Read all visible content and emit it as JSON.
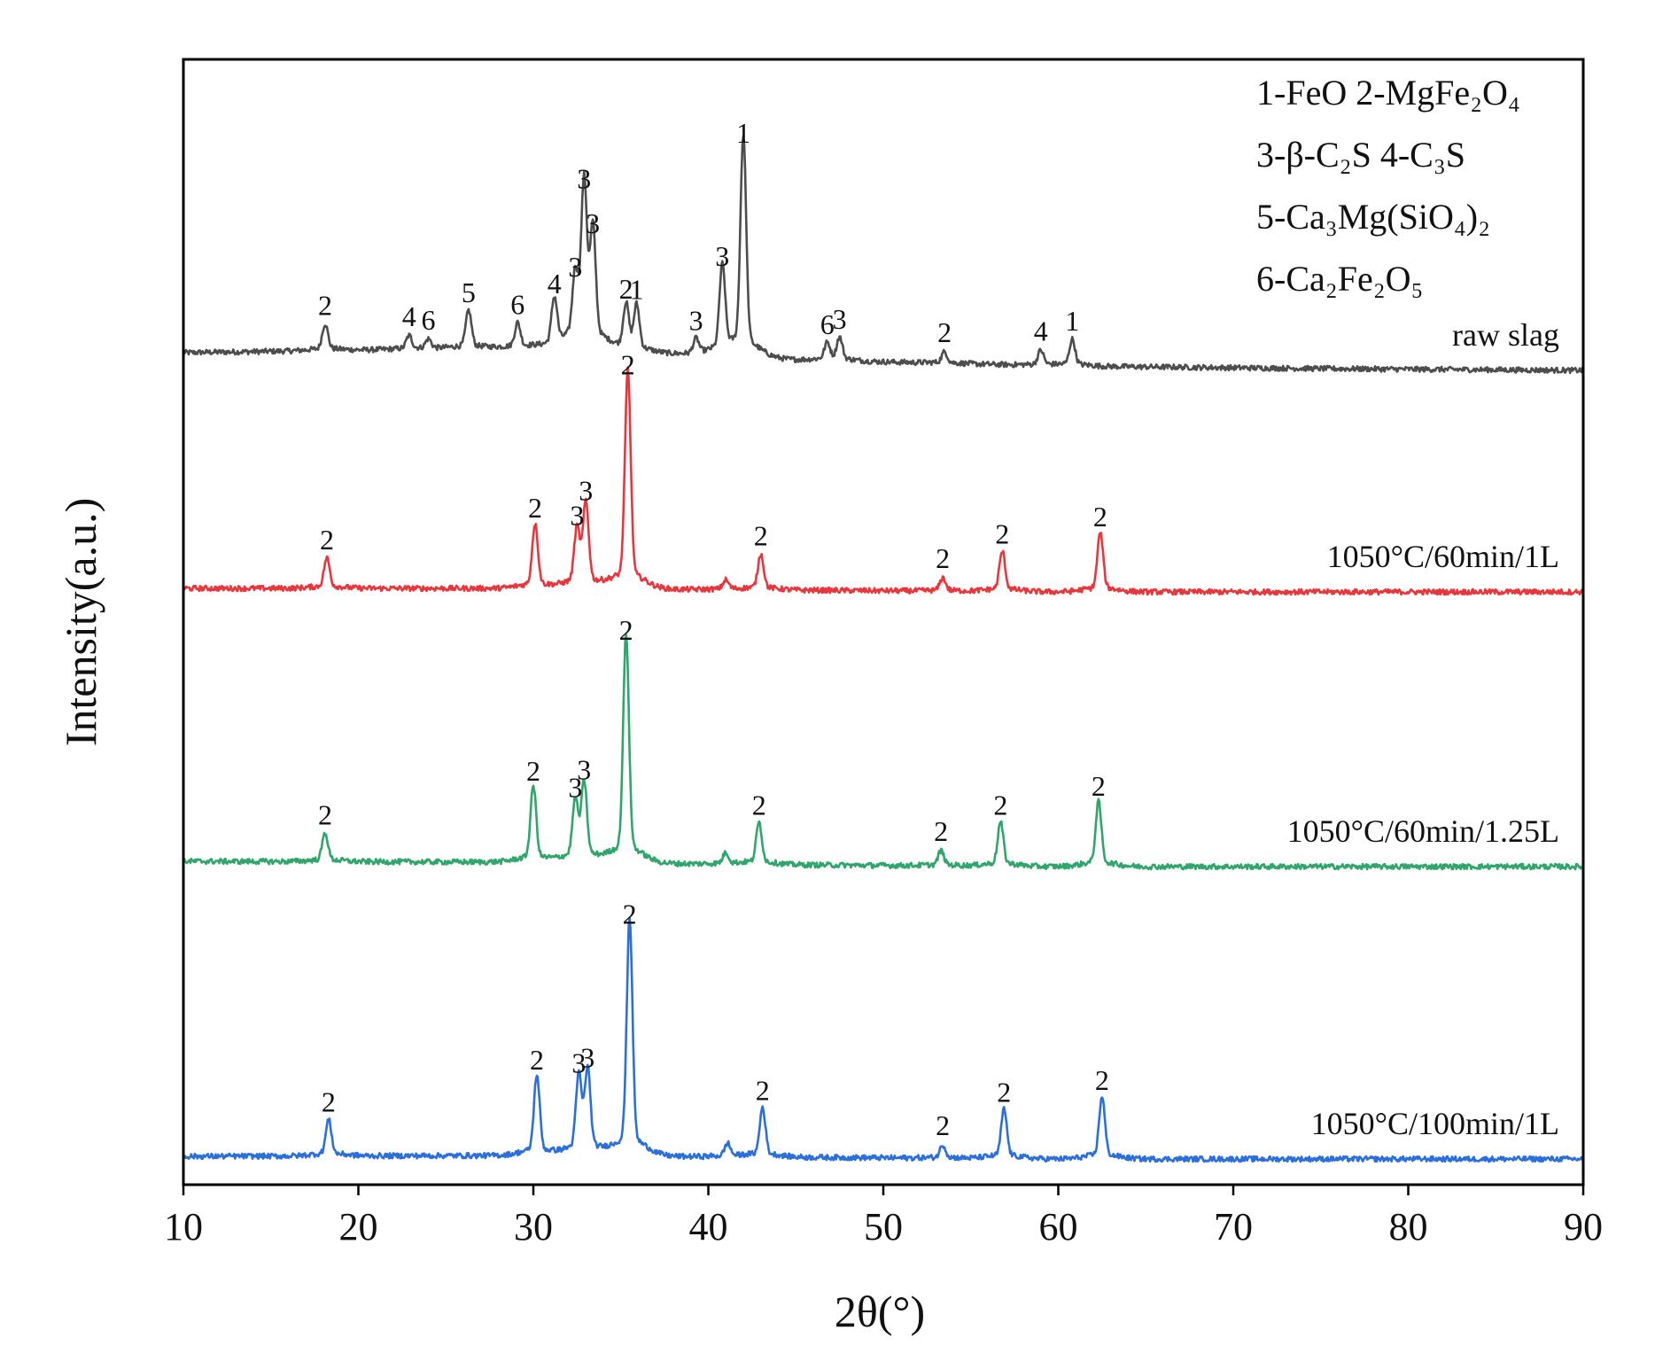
{
  "chart_data": {
    "type": "line",
    "xlabel": "2θ(°)",
    "ylabel": "Intensity(a.u.)",
    "xlim": [
      10,
      90
    ],
    "xticks": [
      "10",
      "20",
      "30",
      "40",
      "50",
      "60",
      "70",
      "80",
      "90"
    ],
    "grid": false,
    "legend": {
      "placement": "top-right",
      "lines": [
        "1-FeO  2-MgFe₂O₄",
        "3-β-C₂S 4-C₃S",
        "5-Ca₃Mg(SiO₄)₂",
        "6-Ca₂Fe₂O₅"
      ]
    },
    "series": [
      {
        "name": "raw slag",
        "color": "#4d4d4d",
        "baseline": [
          [
            10,
            20
          ],
          [
            30,
            26
          ],
          [
            45,
            12
          ],
          [
            60,
            5
          ],
          [
            75,
            2
          ],
          [
            90,
            0
          ]
        ],
        "peaks": [
          {
            "x": 18.1,
            "h": 28,
            "label": "2"
          },
          {
            "x": 22.9,
            "h": 14,
            "label": "4"
          },
          {
            "x": 24.0,
            "h": 10,
            "label": "6"
          },
          {
            "x": 26.3,
            "h": 40,
            "label": "5"
          },
          {
            "x": 29.1,
            "h": 26,
            "label": "6"
          },
          {
            "x": 31.2,
            "h": 50,
            "label": "4"
          },
          {
            "x": 32.4,
            "h": 70,
            "label": "3"
          },
          {
            "x": 32.9,
            "h": 170,
            "label": "3"
          },
          {
            "x": 33.4,
            "h": 120,
            "label": "3"
          },
          {
            "x": 35.3,
            "h": 48,
            "label": "2"
          },
          {
            "x": 35.9,
            "h": 48,
            "label": "1"
          },
          {
            "x": 39.3,
            "h": 16,
            "label": "3"
          },
          {
            "x": 40.8,
            "h": 90,
            "label": "3"
          },
          {
            "x": 42.0,
            "h": 230,
            "label": "1"
          },
          {
            "x": 46.8,
            "h": 18,
            "label": "6"
          },
          {
            "x": 47.5,
            "h": 24,
            "label": "3"
          },
          {
            "x": 53.5,
            "h": 12,
            "label": "2"
          },
          {
            "x": 59.0,
            "h": 16,
            "label": "4"
          },
          {
            "x": 60.8,
            "h": 28,
            "label": "1"
          }
        ]
      },
      {
        "name": "1050°C/60min/1L",
        "color": "#e8363d",
        "baseline": [
          [
            10,
            4
          ],
          [
            30,
            4
          ],
          [
            45,
            2
          ],
          [
            60,
            0
          ],
          [
            90,
            0
          ]
        ],
        "peaks": [
          {
            "x": 18.2,
            "h": 32,
            "label": "2"
          },
          {
            "x": 30.1,
            "h": 68,
            "label": "2"
          },
          {
            "x": 32.5,
            "h": 60,
            "label": "3"
          },
          {
            "x": 33.0,
            "h": 88,
            "label": "3"
          },
          {
            "x": 35.4,
            "h": 230,
            "label": "2"
          },
          {
            "x": 41.0,
            "h": 10,
            "label": ""
          },
          {
            "x": 43.0,
            "h": 38,
            "label": "2"
          },
          {
            "x": 53.4,
            "h": 14,
            "label": "2"
          },
          {
            "x": 56.8,
            "h": 42,
            "label": "2"
          },
          {
            "x": 62.4,
            "h": 62,
            "label": "2"
          }
        ]
      },
      {
        "name": "1050°C/60min/1.25L",
        "color": "#2fa66b",
        "baseline": [
          [
            10,
            6
          ],
          [
            30,
            5
          ],
          [
            45,
            2
          ],
          [
            60,
            0
          ],
          [
            90,
            0
          ]
        ],
        "peaks": [
          {
            "x": 18.1,
            "h": 30,
            "label": "2"
          },
          {
            "x": 30.0,
            "h": 80,
            "label": "2"
          },
          {
            "x": 32.4,
            "h": 62,
            "label": "3"
          },
          {
            "x": 32.9,
            "h": 82,
            "label": "3"
          },
          {
            "x": 35.3,
            "h": 240,
            "label": "2"
          },
          {
            "x": 41.0,
            "h": 12,
            "label": ""
          },
          {
            "x": 42.9,
            "h": 44,
            "label": "2"
          },
          {
            "x": 53.3,
            "h": 16,
            "label": "2"
          },
          {
            "x": 56.7,
            "h": 46,
            "label": "2"
          },
          {
            "x": 62.3,
            "h": 68,
            "label": "2"
          }
        ]
      },
      {
        "name": "1050°C/100min/1L",
        "color": "#2a6fdb",
        "baseline": [
          [
            10,
            3
          ],
          [
            30,
            4
          ],
          [
            45,
            2
          ],
          [
            60,
            0
          ],
          [
            90,
            0
          ]
        ],
        "peaks": [
          {
            "x": 18.3,
            "h": 38,
            "label": "2"
          },
          {
            "x": 30.2,
            "h": 85,
            "label": "2"
          },
          {
            "x": 32.6,
            "h": 82,
            "label": "3"
          },
          {
            "x": 33.1,
            "h": 88,
            "label": "3"
          },
          {
            "x": 35.5,
            "h": 250,
            "label": "2"
          },
          {
            "x": 41.1,
            "h": 14,
            "label": ""
          },
          {
            "x": 43.1,
            "h": 52,
            "label": "2"
          },
          {
            "x": 53.4,
            "h": 14,
            "label": "2"
          },
          {
            "x": 56.9,
            "h": 52,
            "label": "2"
          },
          {
            "x": 62.5,
            "h": 66,
            "label": "2"
          }
        ]
      }
    ]
  }
}
